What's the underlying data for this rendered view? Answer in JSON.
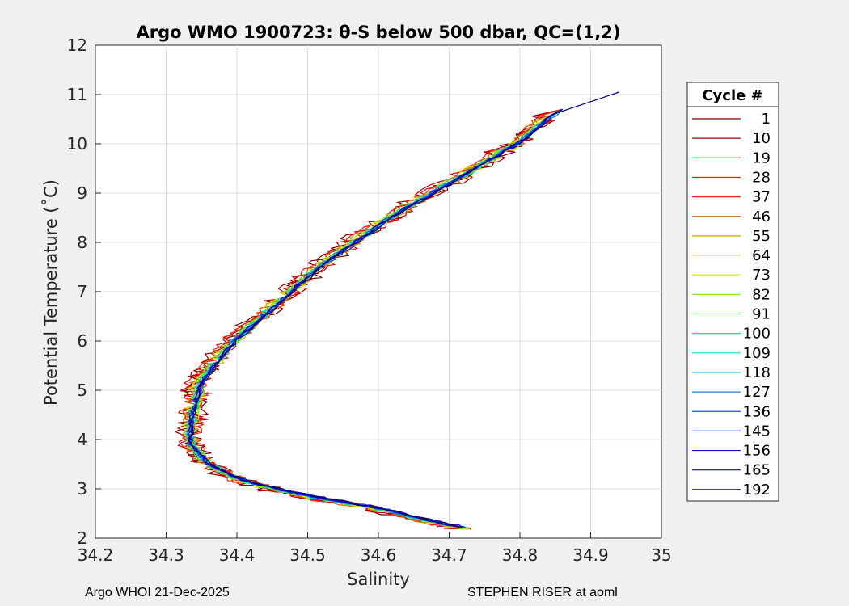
{
  "chart_data": {
    "type": "line",
    "title": "Argo WMO 1900723: θ-S below 500 dbar,  QC=(1,2)",
    "xlabel": "Salinity",
    "ylabel": "Potential Temperature (˚C)",
    "xlim": [
      34.2,
      35.0
    ],
    "ylim": [
      2,
      12
    ],
    "xticks": [
      "34.2",
      "34.3",
      "34.4",
      "34.5",
      "34.6",
      "34.7",
      "34.8",
      "34.9",
      "35"
    ],
    "yticks": [
      "2",
      "3",
      "4",
      "5",
      "6",
      "7",
      "8",
      "9",
      "10",
      "11",
      "12"
    ],
    "grid": true,
    "legend_position": "outside-right",
    "legend_title": "Cycle #",
    "series": [
      {
        "name": "1",
        "color": "#800000"
      },
      {
        "name": "10",
        "color": "#a00000"
      },
      {
        "name": "19",
        "color": "#c80000"
      },
      {
        "name": "28",
        "color": "#e81010"
      },
      {
        "name": "37",
        "color": "#f03010"
      },
      {
        "name": "46",
        "color": "#e06000"
      },
      {
        "name": "55",
        "color": "#c8a000"
      },
      {
        "name": "64",
        "color": "#e0e000"
      },
      {
        "name": "73",
        "color": "#c0f000"
      },
      {
        "name": "82",
        "color": "#80f020"
      },
      {
        "name": "91",
        "color": "#40f040"
      },
      {
        "name": "100",
        "color": "#10e080"
      },
      {
        "name": "109",
        "color": "#10e0c0"
      },
      {
        "name": "118",
        "color": "#10c0e0"
      },
      {
        "name": "127",
        "color": "#1080e0"
      },
      {
        "name": "136",
        "color": "#1050f0"
      },
      {
        "name": "145",
        "color": "#2020f0"
      },
      {
        "name": "156",
        "color": "#1010c0"
      },
      {
        "name": "165",
        "color": "#0808a0"
      },
      {
        "name": "192",
        "color": "#000070"
      }
    ],
    "profile": {
      "salinity": [
        34.72,
        34.67,
        34.6,
        34.52,
        34.45,
        34.4,
        34.36,
        34.335,
        34.335,
        34.34,
        34.35,
        34.37,
        34.4,
        34.44,
        34.48,
        34.52,
        34.57,
        34.62,
        34.68,
        34.74,
        34.8,
        34.86
      ],
      "theta": [
        2.2,
        2.35,
        2.6,
        2.8,
        3.0,
        3.2,
        3.5,
        3.9,
        4.3,
        4.7,
        5.1,
        5.5,
        6.0,
        6.5,
        7.0,
        7.5,
        8.0,
        8.5,
        9.0,
        9.5,
        10.0,
        10.7
      ]
    }
  },
  "footer": {
    "left": "Argo WHOI 21-Dec-2025",
    "right": "STEPHEN RISER at aoml"
  }
}
